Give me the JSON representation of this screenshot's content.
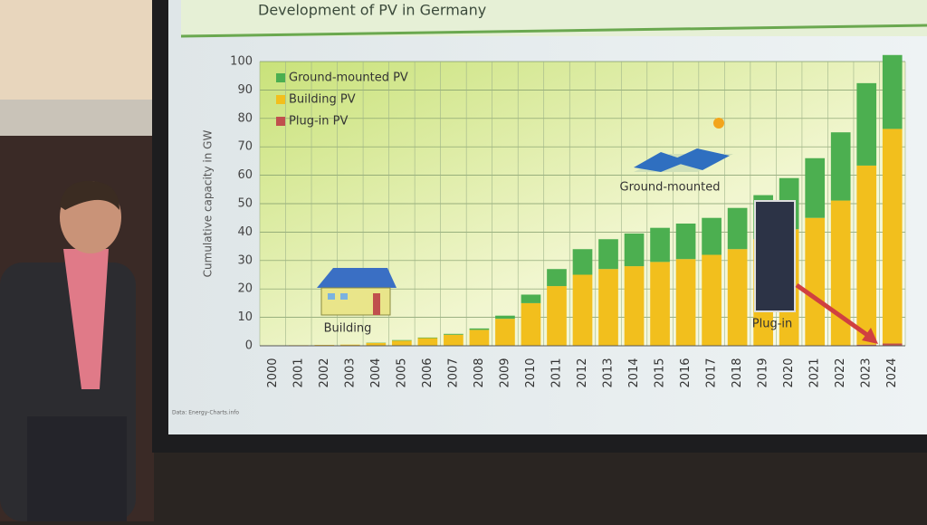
{
  "chart_data": {
    "type": "bar",
    "stacked": true,
    "title": "Development of PV in Germany",
    "y_label": "Cumulative capacity in GW",
    "source": "Data: Energy-Charts.info",
    "annotations": [
      "Building",
      "Ground-mounted",
      "Plug-in"
    ],
    "categories": [
      "2000",
      "2001",
      "2002",
      "2003",
      "2004",
      "2005",
      "2006",
      "2007",
      "2008",
      "2009",
      "2010",
      "2011",
      "2012",
      "2013",
      "2014",
      "2015",
      "2016",
      "2017",
      "2018",
      "2019",
      "2020",
      "2021",
      "2022",
      "2023",
      "2024"
    ],
    "series": [
      {
        "name": "Plug-in PV",
        "color": "#c0504d",
        "values": [
          0,
          0,
          0,
          0,
          0,
          0,
          0,
          0,
          0,
          0,
          0,
          0,
          0,
          0,
          0,
          0,
          0,
          0,
          0,
          0,
          0,
          0,
          0.1,
          0.4,
          0.8
        ]
      },
      {
        "name": "Building PV",
        "color": "#f2bf1d",
        "values": [
          0.1,
          0.2,
          0.3,
          0.4,
          1.0,
          1.8,
          2.7,
          3.9,
          5.6,
          9.5,
          15,
          21,
          25,
          27,
          28,
          29.5,
          30.5,
          32,
          34,
          37.5,
          41,
          45,
          51,
          63,
          75.5
        ]
      },
      {
        "name": "Ground-mounted PV",
        "color": "#4caf50",
        "values": [
          0,
          0,
          0,
          0,
          0.1,
          0.2,
          0.2,
          0.3,
          0.5,
          1.1,
          3,
          6,
          9,
          10.5,
          11.5,
          12,
          12.5,
          13,
          14.5,
          15.5,
          18,
          21,
          24,
          29,
          26
        ]
      }
    ],
    "legend_order": [
      2,
      1,
      0
    ],
    "ylim": [
      0,
      100
    ],
    "yticks": [
      0,
      10,
      20,
      30,
      40,
      50,
      60,
      70,
      80,
      90,
      100
    ],
    "grid": true
  }
}
